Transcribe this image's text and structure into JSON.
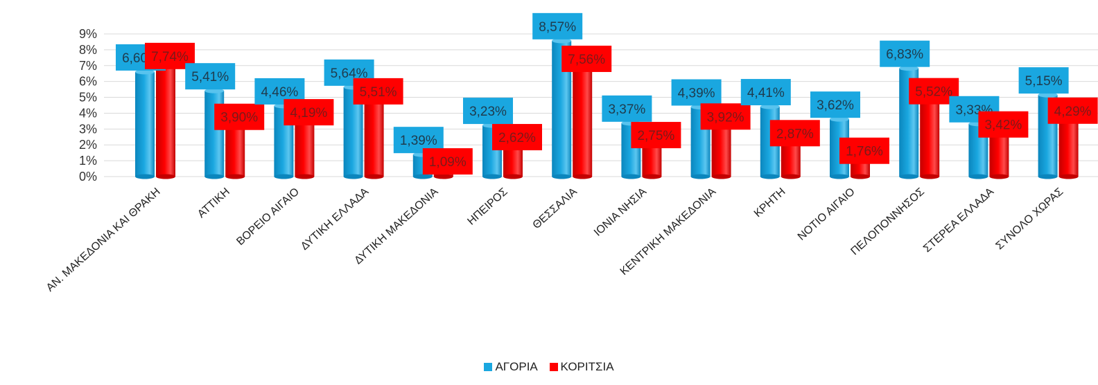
{
  "chart_data": {
    "type": "bar",
    "title": "",
    "xlabel": "",
    "ylabel": "",
    "ylim": [
      0,
      9
    ],
    "yticks": [
      "0%",
      "1%",
      "2%",
      "3%",
      "4%",
      "5%",
      "6%",
      "7%",
      "8%",
      "9%"
    ],
    "grid": true,
    "legend_position": "bottom",
    "categories": [
      "ΑΝ. ΜΑΚΕΔΟΝΙΑ ΚΑΙ ΘΡΑΚΗ",
      "ΑΤΤΙΚΗ",
      "ΒΟΡΕΙΟ ΑΙΓΑΙΟ",
      "ΔΥΤΙΚΗ ΕΛΛΑΔΑ",
      "ΔΥΤΙΚΗ ΜΑΚΕΔΟΝΙΑ",
      "ΗΠΕΙΡΟΣ",
      "ΘΕΣΣΑΛΙΑ",
      "ΙΟΝΙΑ ΝΗΣΙΑ",
      "ΚΕΝΤΡΙΚΗ ΜΑΚΕΔΟΝΙΑ",
      "ΚΡΗΤΗ",
      "ΝΟΤΙΟ ΑΙΓΑΙΟ",
      "ΠΕΛΟΠΟΝΝΗΣΟΣ",
      "ΣΤΕΡΕΑ ΕΛΛΑΔΑ",
      "ΣΥΝΟΛΟ ΧΩΡΑΣ"
    ],
    "series": [
      {
        "name": "ΑΓΟΡΙΑ",
        "color": "#1aa7e0",
        "values": [
          6.6,
          5.41,
          4.46,
          5.64,
          1.39,
          3.23,
          8.57,
          3.37,
          4.39,
          4.41,
          3.62,
          6.83,
          3.33,
          5.15
        ],
        "labels": [
          "6,60%",
          "5,41%",
          "4,46%",
          "5,64%",
          "1,39%",
          "3,23%",
          "8,57%",
          "3,37%",
          "4,39%",
          "4,41%",
          "3,62%",
          "6,83%",
          "3,33%",
          "5,15%"
        ]
      },
      {
        "name": "ΚΟΡΙΤΣΙΑ",
        "color": "#ff0000",
        "values": [
          7.74,
          3.9,
          4.19,
          5.51,
          1.09,
          2.62,
          7.56,
          2.75,
          3.92,
          2.87,
          1.76,
          5.52,
          3.42,
          4.29
        ],
        "labels": [
          "7,74%",
          "3,90%",
          "4,19%",
          "5,51%",
          "1,09%",
          "2,62%",
          "7,56%",
          "2,75%",
          "3,92%",
          "2,87%",
          "1,76%",
          "5,52%",
          "3,42%",
          "4,29%"
        ]
      }
    ]
  }
}
